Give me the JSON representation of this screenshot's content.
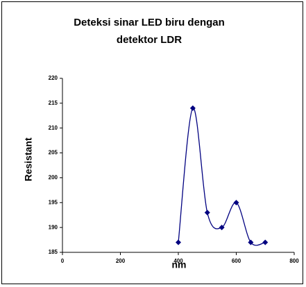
{
  "chart_data": {
    "type": "scatter",
    "title": "Deteksi sinar LED biru dengan detektor LDR",
    "x_label": "nm",
    "y_label": "Resistant",
    "x": [
      400,
      450,
      500,
      550,
      600,
      650,
      700
    ],
    "series": [
      {
        "name": "Resistant",
        "color": "#000080",
        "values": [
          187,
          214,
          193,
          190,
          195,
          187,
          187
        ]
      }
    ],
    "xlim": [
      0,
      800
    ],
    "xticks": [
      0,
      200,
      400,
      600,
      800
    ],
    "ylim": [
      185,
      220
    ],
    "yticks": [
      185,
      190,
      195,
      200,
      205,
      210,
      215,
      220
    ],
    "smooth": true
  }
}
